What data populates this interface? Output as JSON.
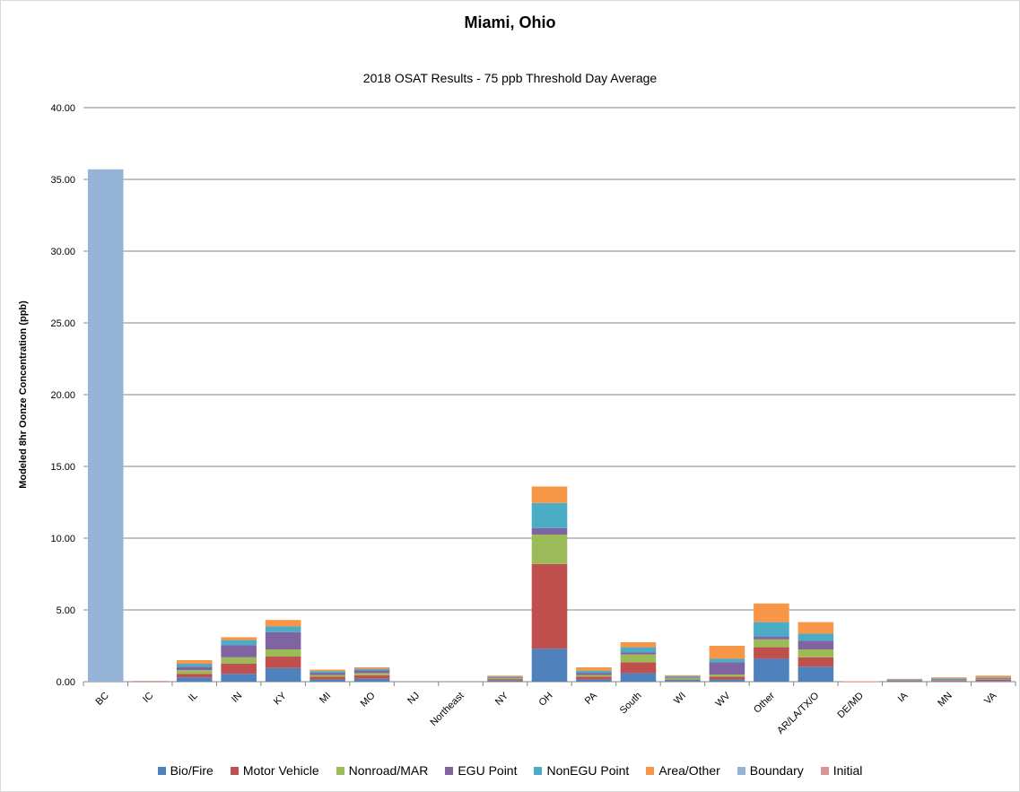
{
  "chart_data": {
    "type": "bar",
    "stacked": true,
    "title": "Miami, Ohio",
    "subtitle": "2018 OSAT Results - 75 ppb Threshold Day Average",
    "ylabel": "Modeled 8hr Oonze Concentration (ppb)",
    "xlabel": "",
    "ylim": [
      0,
      40
    ],
    "yticks": [
      "0.00",
      "5.00",
      "10.00",
      "15.00",
      "20.00",
      "25.00",
      "30.00",
      "35.00",
      "40.00"
    ],
    "grid": true,
    "legend_position": "bottom",
    "categories": [
      "BC",
      "IC",
      "IL",
      "IN",
      "KY",
      "MI",
      "MO",
      "NJ",
      "Northeast",
      "NY",
      "OH",
      "PA",
      "South",
      "WI",
      "WV",
      "Other",
      "AR/LA/TX/O",
      "DE/MD",
      "IA",
      "MN",
      "VA"
    ],
    "series": [
      {
        "name": "Bio/Fire",
        "color": "#4f81bd",
        "values": [
          0,
          0,
          0.3,
          0.55,
          0.95,
          0.15,
          0.2,
          0,
          0,
          0.08,
          2.3,
          0.15,
          0.6,
          0.1,
          0.15,
          1.6,
          1.05,
          0,
          0.05,
          0.05,
          0.05
        ]
      },
      {
        "name": "Motor Vehicle",
        "color": "#c0504d",
        "values": [
          0,
          0.02,
          0.25,
          0.7,
          0.8,
          0.2,
          0.25,
          0,
          0,
          0.1,
          5.9,
          0.2,
          0.75,
          0.05,
          0.2,
          0.8,
          0.65,
          0.01,
          0.03,
          0.05,
          0.1
        ]
      },
      {
        "name": "Nonroad/MAR",
        "color": "#9bbb59",
        "values": [
          0,
          0,
          0.25,
          0.45,
          0.5,
          0.12,
          0.15,
          0,
          0,
          0.07,
          2.05,
          0.12,
          0.55,
          0.12,
          0.15,
          0.55,
          0.55,
          0,
          0.04,
          0.05,
          0.05
        ]
      },
      {
        "name": "EGU Point",
        "color": "#8064a2",
        "values": [
          0,
          0,
          0.25,
          0.85,
          1.2,
          0.15,
          0.2,
          0,
          0,
          0.05,
          0.45,
          0.15,
          0.15,
          0.05,
          0.85,
          0.2,
          0.6,
          0,
          0.02,
          0.04,
          0.05
        ]
      },
      {
        "name": "NonEGU Point",
        "color": "#4bacc6",
        "values": [
          0,
          0,
          0.2,
          0.35,
          0.4,
          0.12,
          0.1,
          0,
          0,
          0.05,
          1.75,
          0.15,
          0.35,
          0.08,
          0.25,
          1.0,
          0.5,
          0,
          0.03,
          0.05,
          0.05
        ]
      },
      {
        "name": "Area/Other",
        "color": "#f79646",
        "values": [
          0,
          0,
          0.25,
          0.2,
          0.45,
          0.1,
          0.1,
          0,
          0,
          0.07,
          1.15,
          0.23,
          0.35,
          0.05,
          0.9,
          1.3,
          0.8,
          0.02,
          0.03,
          0.06,
          0.12
        ]
      },
      {
        "name": "Boundary",
        "color": "#95b3d7",
        "values": [
          35.7,
          0,
          0,
          0,
          0,
          0,
          0,
          0,
          0,
          0,
          0,
          0,
          0,
          0,
          0,
          0,
          0,
          0,
          0,
          0,
          0
        ]
      },
      {
        "name": "Initial",
        "color": "#d99694",
        "values": [
          0,
          0.03,
          0,
          0,
          0,
          0,
          0,
          0,
          0,
          0,
          0,
          0,
          0,
          0,
          0,
          0,
          0,
          0,
          0,
          0,
          0
        ]
      }
    ]
  }
}
